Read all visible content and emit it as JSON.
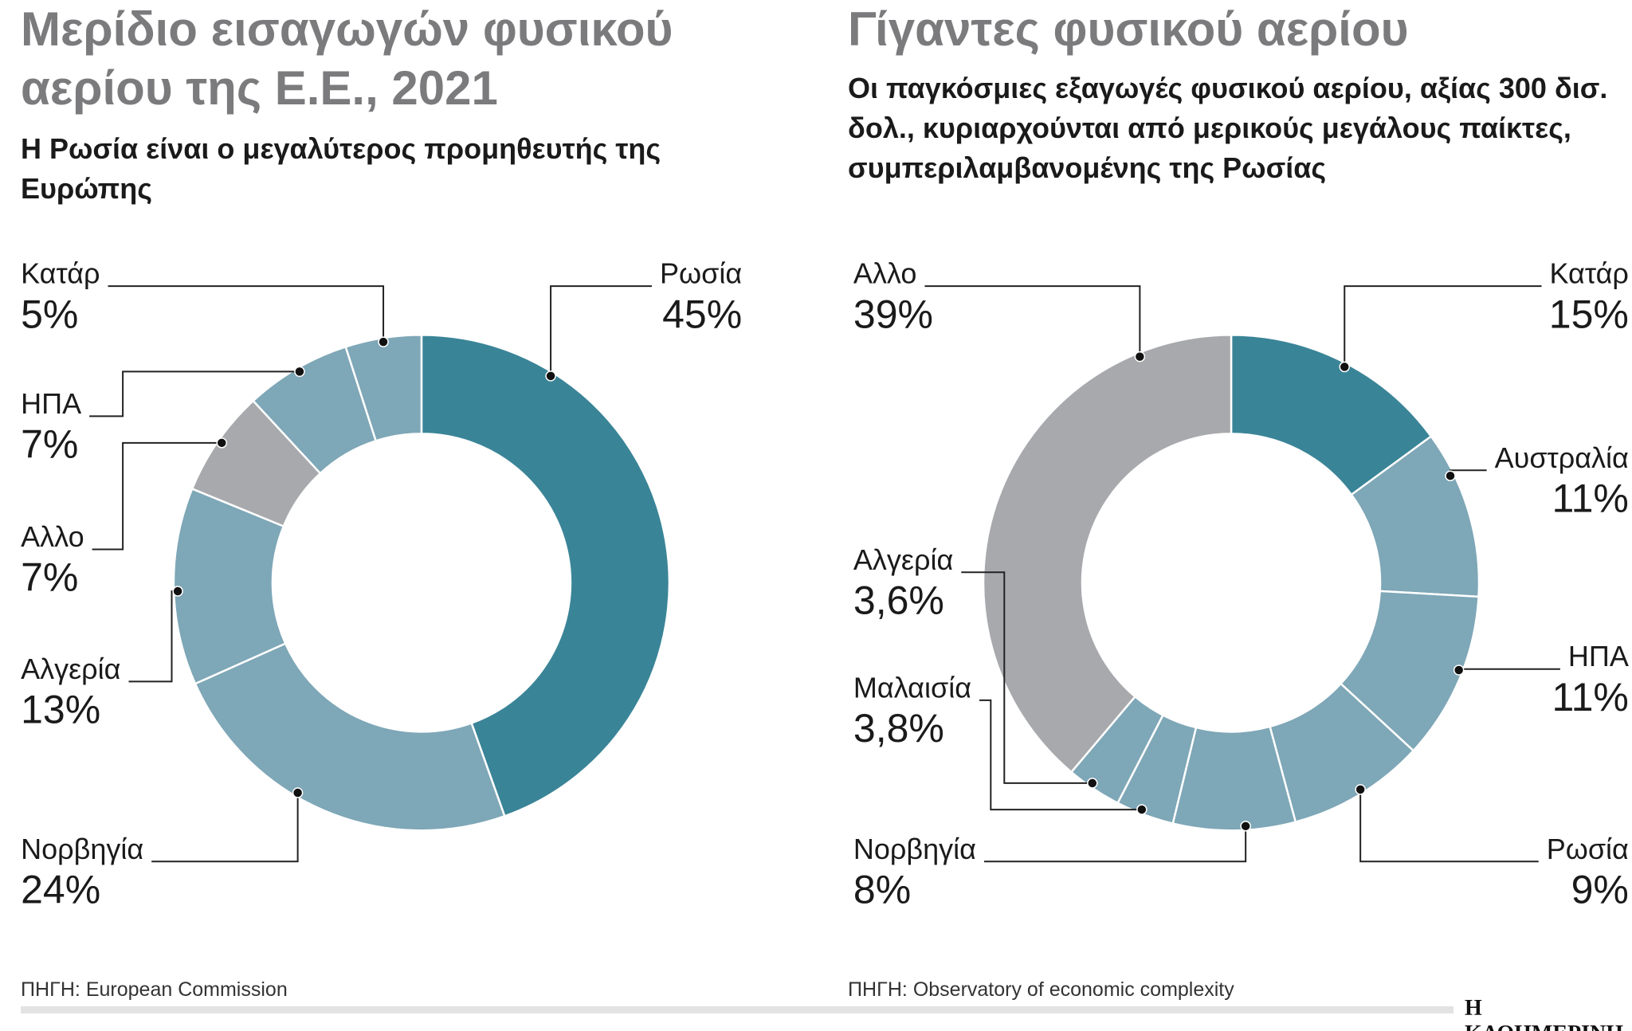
{
  "chart_data": [
    {
      "type": "pie",
      "title": "Μερίδιο εισαγωγών φυσικού αερίου της Ε.Ε., 2021",
      "subtitle": "Η Ρωσία είναι ο μεγαλύτερος προμηθευτής της Ευρώπης",
      "categories": [
        "Ρωσία",
        "Νορβηγία",
        "Αλγερία",
        "Αλλο",
        "ΗΠΑ",
        "Κατάρ"
      ],
      "values": [
        45,
        24,
        13,
        7,
        7,
        5
      ],
      "value_labels": [
        "45%",
        "24%",
        "13%",
        "7%",
        "7%",
        "5%"
      ],
      "colors": [
        "#3a8497",
        "#7ea7b7",
        "#7ea7b7",
        "#a7a9ad",
        "#7ea7b7",
        "#7ea7b7"
      ],
      "source": "ΠΗΓΗ: European Commission"
    },
    {
      "type": "pie",
      "title": "Γίγαντες φυσικού αερίου",
      "subtitle": "Οι παγκόσμιες εξαγωγές φυσικού αερίου, αξίας 300 δισ. δολ., κυριαρχούνται από μερικούς μεγάλους παίκτες, συμπεριλαμβανομένης της Ρωσίας",
      "categories": [
        "Κατάρ",
        "Αυστραλία",
        "ΗΠΑ",
        "Ρωσία",
        "Νορβηγία",
        "Μαλαισία",
        "Αλγερία",
        "Αλλο"
      ],
      "values": [
        15,
        11,
        11,
        9,
        8,
        3.8,
        3.6,
        39
      ],
      "value_labels": [
        "15%",
        "11%",
        "11%",
        "9%",
        "8%",
        "3,8%",
        "3,6%",
        "39%"
      ],
      "colors": [
        "#3a8497",
        "#7ea7b7",
        "#7ea7b7",
        "#7ea7b7",
        "#7ea7b7",
        "#7ea7b7",
        "#7ea7b7",
        "#a7a9ad"
      ],
      "source": "ΠΗΓΗ: Observatory of economic complexity"
    }
  ],
  "brand": "Η ΚΑΘΗΜΕΡΙΝΗ"
}
